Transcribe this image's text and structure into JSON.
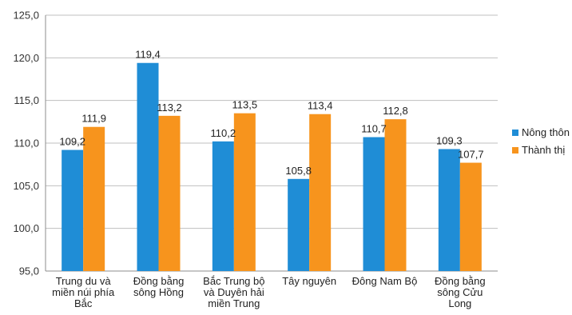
{
  "chart_data": {
    "type": "bar",
    "categories": [
      [
        "Trung du và",
        "miền núi phía",
        "Bắc"
      ],
      [
        "Đồng bằng",
        "sông Hồng"
      ],
      [
        "Bắc Trung bộ",
        "và Duyên hải",
        "miền Trung"
      ],
      [
        "Tây nguyên"
      ],
      [
        "Đông Nam Bộ"
      ],
      [
        "Đồng bằng",
        "sông Cửu",
        "Long"
      ]
    ],
    "series": [
      {
        "name": "Nông thôn",
        "color": "#1f8dd6",
        "values": [
          109.2,
          119.4,
          110.2,
          105.8,
          110.7,
          109.3
        ],
        "labels": [
          "109,2",
          "119,4",
          "110,2",
          "105,8",
          "110,7",
          "109,3"
        ]
      },
      {
        "name": "Thành thị",
        "color": "#f7941d",
        "values": [
          111.9,
          113.2,
          113.5,
          113.4,
          112.8,
          107.7
        ],
        "labels": [
          "111,9",
          "113,2",
          "113,5",
          "113,4",
          "112,8",
          "107,7"
        ]
      }
    ],
    "ylim": [
      95,
      125
    ],
    "yticks": [
      {
        "value": 95,
        "label": "95,0"
      },
      {
        "value": 100,
        "label": "100,0"
      },
      {
        "value": 105,
        "label": "105,0"
      },
      {
        "value": 110,
        "label": "110,0"
      },
      {
        "value": 115,
        "label": "115,0"
      },
      {
        "value": 120,
        "label": "120,0"
      },
      {
        "value": 125,
        "label": "125,0"
      }
    ],
    "grid": true,
    "legend": "right"
  }
}
